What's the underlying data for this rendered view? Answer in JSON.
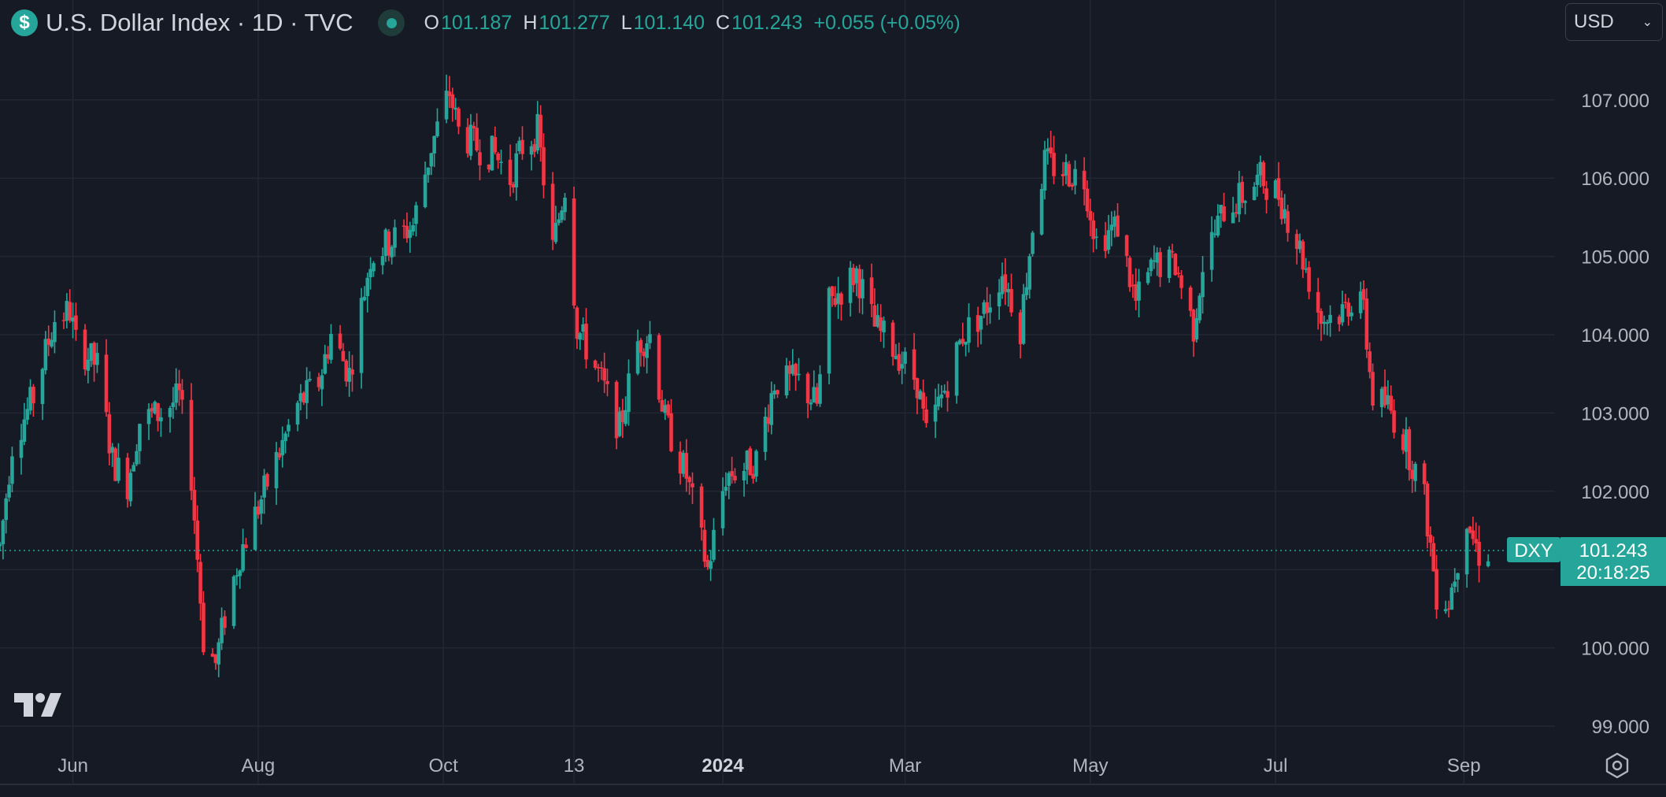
{
  "header": {
    "currency_symbol": "$",
    "title": "U.S. Dollar Index · 1D · TVC",
    "open_label": "O",
    "open": "101.187",
    "high_label": "H",
    "high": "101.277",
    "low_label": "L",
    "low": "101.140",
    "close_label": "C",
    "close": "101.243",
    "change": "+0.055 (+0.05%)"
  },
  "currency_select": {
    "value": "USD"
  },
  "price_tag": {
    "symbol": "DXY",
    "price": "101.243",
    "countdown": "20:18:25"
  },
  "colors": {
    "background": "#161a25",
    "up": "#26a69a",
    "down": "#f23645",
    "grid": "#232733",
    "text": "#b2b5be"
  },
  "icons": {
    "logo": "tradingview-logo-icon",
    "settings": "settings-gear-icon",
    "live": "market-open-dot-icon"
  },
  "chart_data": {
    "type": "candlestick",
    "symbol": "DXY",
    "timeframe": "1D",
    "ylim": [
      99.0,
      107.4
    ],
    "yticks": [
      "107.000",
      "106.000",
      "105.000",
      "104.000",
      "103.000",
      "102.000",
      "101.000",
      "100.000",
      "99.000"
    ],
    "ytick_values": [
      107,
      106,
      105,
      104,
      103,
      102,
      101,
      100,
      99
    ],
    "xticks": [
      {
        "label": "Jun",
        "date": "2023-06-01",
        "bold": false
      },
      {
        "label": "Aug",
        "date": "2023-08-01",
        "bold": false
      },
      {
        "label": "Oct",
        "date": "2023-10-01",
        "bold": false
      },
      {
        "label": "13",
        "date": "2023-11-13",
        "bold": false
      },
      {
        "label": "2024",
        "date": "2024-01-01",
        "bold": true
      },
      {
        "label": "Mar",
        "date": "2024-03-01",
        "bold": false
      },
      {
        "label": "May",
        "date": "2024-05-01",
        "bold": false
      },
      {
        "label": "Jul",
        "date": "2024-07-01",
        "bold": false
      },
      {
        "label": "Sep",
        "date": "2024-09-01",
        "bold": false
      }
    ],
    "xlim": [
      "2023-05-08",
      "2024-10-01"
    ],
    "current_price": 101.243,
    "grid": true,
    "price_path": [
      [
        "2023-05-08",
        101.3
      ],
      [
        "2023-05-12",
        102.6
      ],
      [
        "2023-05-19",
        103.2
      ],
      [
        "2023-05-26",
        104.2
      ],
      [
        "2023-05-31",
        104.3
      ],
      [
        "2023-06-02",
        103.9
      ],
      [
        "2023-06-09",
        103.6
      ],
      [
        "2023-06-14",
        102.4
      ],
      [
        "2023-06-19",
        102.1
      ],
      [
        "2023-06-23",
        102.9
      ],
      [
        "2023-06-30",
        103.0
      ],
      [
        "2023-07-06",
        103.2
      ],
      [
        "2023-07-10",
        102.2
      ],
      [
        "2023-07-14",
        100.1
      ],
      [
        "2023-07-18",
        99.8
      ],
      [
        "2023-07-21",
        100.4
      ],
      [
        "2023-07-26",
        101.2
      ],
      [
        "2023-08-01",
        101.8
      ],
      [
        "2023-08-07",
        102.4
      ],
      [
        "2023-08-14",
        103.1
      ],
      [
        "2023-08-21",
        103.4
      ],
      [
        "2023-08-25",
        104.0
      ],
      [
        "2023-08-31",
        103.5
      ],
      [
        "2023-09-07",
        105.0
      ],
      [
        "2023-09-14",
        105.2
      ],
      [
        "2023-09-21",
        105.4
      ],
      [
        "2023-09-27",
        106.4
      ],
      [
        "2023-10-03",
        107.1
      ],
      [
        "2023-10-06",
        106.6
      ],
      [
        "2023-10-12",
        106.4
      ],
      [
        "2023-10-18",
        106.3
      ],
      [
        "2023-10-23",
        106.0
      ],
      [
        "2023-10-27",
        106.4
      ],
      [
        "2023-11-01",
        106.6
      ],
      [
        "2023-11-06",
        105.1
      ],
      [
        "2023-11-10",
        105.9
      ],
      [
        "2023-11-14",
        104.1
      ],
      [
        "2023-11-21",
        103.5
      ],
      [
        "2023-11-28",
        102.8
      ],
      [
        "2023-12-04",
        103.9
      ],
      [
        "2023-12-08",
        104.0
      ],
      [
        "2023-12-13",
        102.9
      ],
      [
        "2023-12-20",
        102.2
      ],
      [
        "2023-12-27",
        101.0
      ],
      [
        "2024-01-02",
        102.2
      ],
      [
        "2024-01-08",
        102.3
      ],
      [
        "2024-01-12",
        102.4
      ],
      [
        "2024-01-18",
        103.4
      ],
      [
        "2024-01-26",
        103.4
      ],
      [
        "2024-02-01",
        103.1
      ],
      [
        "2024-02-05",
        104.4
      ],
      [
        "2024-02-14",
        104.8
      ],
      [
        "2024-02-20",
        104.1
      ],
      [
        "2024-02-27",
        103.8
      ],
      [
        "2024-03-05",
        103.4
      ],
      [
        "2024-03-08",
        102.7
      ],
      [
        "2024-03-14",
        103.3
      ],
      [
        "2024-03-20",
        104.0
      ],
      [
        "2024-03-27",
        104.3
      ],
      [
        "2024-04-02",
        104.8
      ],
      [
        "2024-04-08",
        104.1
      ],
      [
        "2024-04-12",
        105.4
      ],
      [
        "2024-04-16",
        106.2
      ],
      [
        "2024-04-22",
        106.1
      ],
      [
        "2024-04-29",
        106.0
      ],
      [
        "2024-05-03",
        105.2
      ],
      [
        "2024-05-10",
        105.4
      ],
      [
        "2024-05-16",
        104.4
      ],
      [
        "2024-05-22",
        104.9
      ],
      [
        "2024-05-29",
        104.9
      ],
      [
        "2024-06-04",
        104.1
      ],
      [
        "2024-06-07",
        104.9
      ],
      [
        "2024-06-14",
        105.6
      ],
      [
        "2024-06-21",
        105.8
      ],
      [
        "2024-06-26",
        106.0
      ],
      [
        "2024-07-02",
        105.8
      ],
      [
        "2024-07-09",
        105.1
      ],
      [
        "2024-07-16",
        104.2
      ],
      [
        "2024-07-23",
        104.3
      ],
      [
        "2024-07-29",
        104.6
      ],
      [
        "2024-08-02",
        103.2
      ],
      [
        "2024-08-07",
        103.1
      ],
      [
        "2024-08-13",
        102.6
      ],
      [
        "2024-08-19",
        101.9
      ],
      [
        "2024-08-23",
        100.7
      ],
      [
        "2024-08-27",
        100.6
      ],
      [
        "2024-09-02",
        101.7
      ],
      [
        "2024-09-04",
        101.4
      ],
      [
        "2024-09-06",
        101.2
      ],
      [
        "2024-09-09",
        101.243
      ]
    ]
  }
}
